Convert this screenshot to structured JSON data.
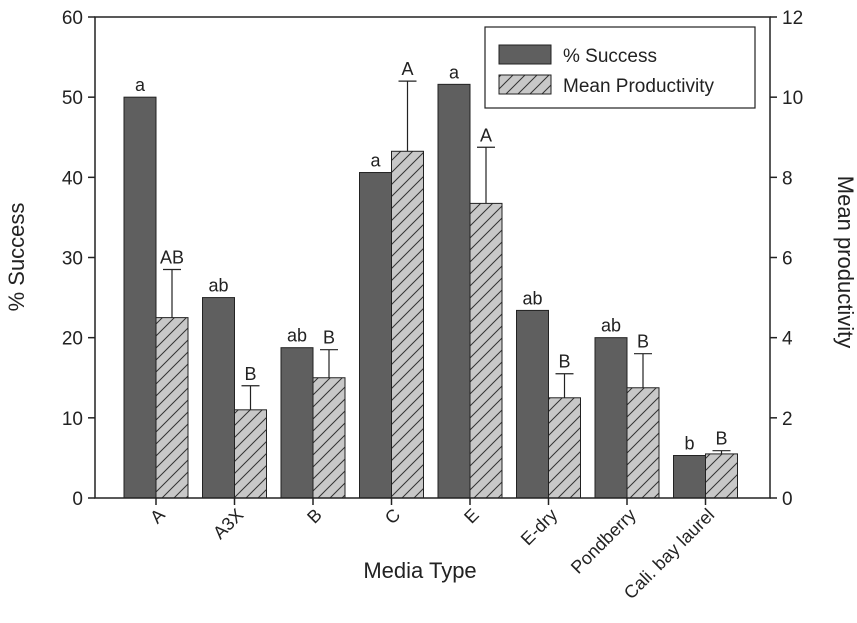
{
  "chart_data": {
    "type": "bar",
    "xlabel": "Media Type",
    "ylabel_left": "% Success",
    "ylabel_right": "Mean productivity",
    "ylim_left": [
      0,
      60
    ],
    "ylim_right": [
      0,
      12
    ],
    "yticks_left": [
      "0",
      "10",
      "20",
      "30",
      "40",
      "50",
      "60"
    ],
    "yticks_right": [
      "0",
      "2",
      "4",
      "6",
      "8",
      "10",
      "12"
    ],
    "categories": [
      "A",
      "A3X",
      "B",
      "C",
      "E",
      "E-dry",
      "Pondberry",
      "Cali. bay laurel"
    ],
    "legend_position": "top-right",
    "grid": false,
    "series": [
      {
        "name": "% Success",
        "axis": "left",
        "color": "#5f5f5f",
        "values": [
          50,
          25,
          18.75,
          40.6,
          51.6,
          23.4,
          20,
          5.3
        ],
        "labels": [
          "a",
          "ab",
          "ab",
          "a",
          "a",
          "ab",
          "ab",
          "b"
        ]
      },
      {
        "name": "Mean Productivity",
        "axis": "right",
        "color": "#c8c8c8",
        "hatched": true,
        "values": [
          4.5,
          2.2,
          3.0,
          8.65,
          7.35,
          2.5,
          2.75,
          1.1
        ],
        "errors": [
          1.2,
          0.6,
          0.7,
          1.75,
          1.4,
          0.6,
          0.85,
          0.08
        ],
        "labels": [
          "AB",
          "B",
          "B",
          "A",
          "A",
          "B",
          "B",
          "B"
        ]
      }
    ]
  }
}
